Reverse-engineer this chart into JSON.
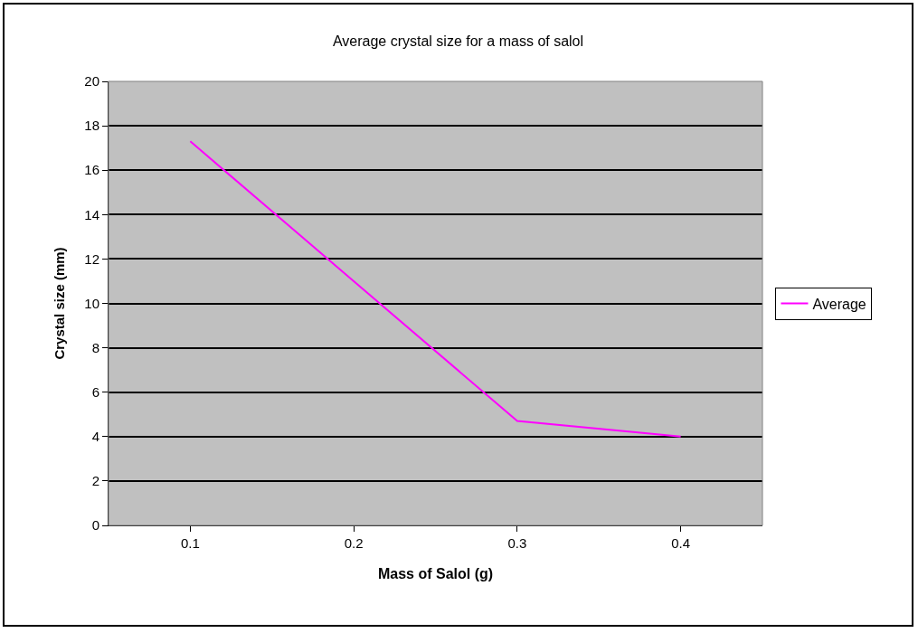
{
  "chart_data": {
    "type": "line",
    "title": "Average crystal size for a mass of salol",
    "xlabel": "Mass of Salol (g)",
    "ylabel": "Crystal size (mm)",
    "categories": [
      "0.1",
      "0.2",
      "0.3",
      "0.4"
    ],
    "series": [
      {
        "name": "Average",
        "color": "#ff00ff",
        "values": [
          17.3,
          11.0,
          4.7,
          4.0
        ]
      }
    ],
    "ylim": [
      0,
      20
    ],
    "yticks": [
      0,
      2,
      4,
      6,
      8,
      10,
      12,
      14,
      16,
      18,
      20
    ],
    "grid": "y",
    "legend": "right",
    "marker": "none",
    "line_style": "solid"
  }
}
